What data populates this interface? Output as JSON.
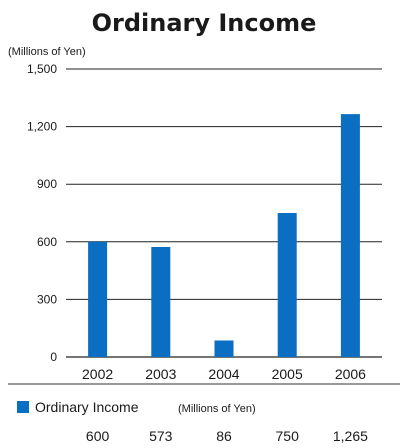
{
  "chart_data": {
    "type": "bar",
    "title": "Ordinary Income",
    "unit_label": "(Millions of Yen)",
    "categories": [
      "2002",
      "2003",
      "2004",
      "2005",
      "2006"
    ],
    "series": [
      {
        "name": "Ordinary Income",
        "values": [
          600,
          573,
          86,
          750,
          1265
        ]
      }
    ],
    "value_labels": [
      "600",
      "573",
      "86",
      "750",
      "1,265"
    ],
    "yticks": [
      0,
      300,
      600,
      900,
      1200,
      1500
    ],
    "ytick_labels": [
      "0",
      "300",
      "600",
      "900",
      "1,200",
      "1,500"
    ],
    "ylim": [
      0,
      1500
    ],
    "grid": true,
    "legend": {
      "label": "Ordinary Income",
      "unit": "(Millions of Yen)",
      "placement": "bottom"
    },
    "bar_color": "#0a6fc2"
  }
}
